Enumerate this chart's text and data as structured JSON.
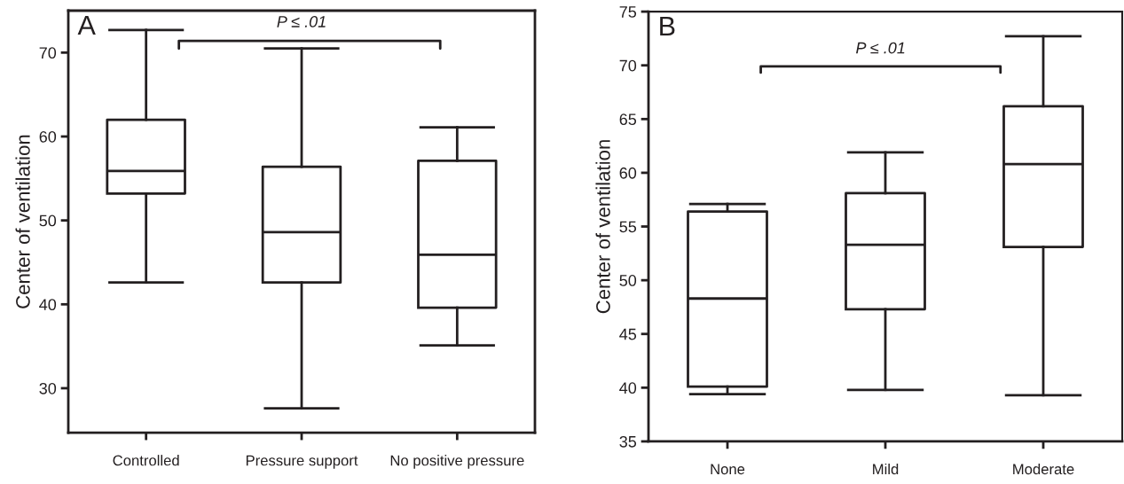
{
  "chart_data": [
    {
      "type": "box",
      "ylabel": "Center of ventilation",
      "categories": [
        "Controlled",
        "Pressure support",
        "No positive pressure"
      ],
      "boxes": [
        {
          "low": 42.6,
          "q1": 53.2,
          "median": 55.9,
          "q3": 62.0,
          "high": 72.7
        },
        {
          "low": 27.6,
          "q1": 42.6,
          "median": 48.6,
          "q3": 56.4,
          "high": 70.5
        },
        {
          "low": 35.1,
          "q1": 39.6,
          "median": 45.9,
          "q3": 57.1,
          "high": 61.1
        }
      ],
      "ylim": [
        24.7,
        75
      ],
      "yticks": [
        30,
        40,
        50,
        60,
        70
      ],
      "grid": false,
      "annotations": [
        "A",
        "P ≤ .01"
      ]
    },
    {
      "type": "box",
      "ylabel": "Center of ventilation",
      "categories": [
        "None",
        "Mild",
        "Moderate"
      ],
      "boxes": [
        {
          "low": 39.4,
          "q1": 40.1,
          "median": 48.3,
          "q3": 56.4,
          "high": 57.1
        },
        {
          "low": 39.8,
          "q1": 47.3,
          "median": 53.3,
          "q3": 58.1,
          "high": 61.9
        },
        {
          "low": 39.3,
          "q1": 53.1,
          "median": 60.8,
          "q3": 66.2,
          "high": 72.7
        }
      ],
      "ylim": [
        35,
        75
      ],
      "yticks": [
        35,
        40,
        45,
        50,
        55,
        60,
        65,
        70,
        75
      ],
      "grid": false,
      "annotations": [
        "B",
        "P ≤ .01"
      ]
    }
  ]
}
